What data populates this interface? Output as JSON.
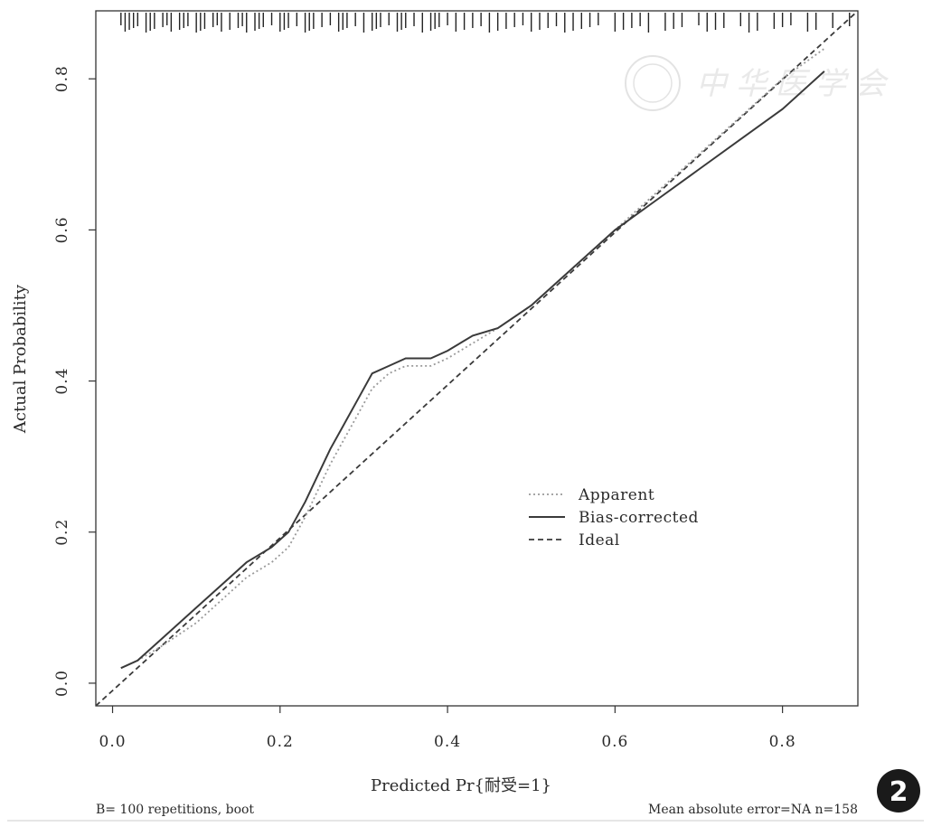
{
  "chart_data": {
    "type": "line",
    "xlabel": "Predicted Pr{耐受=1}",
    "ylabel": "Actual Probability",
    "xlim": [
      -0.02,
      0.89
    ],
    "ylim": [
      -0.03,
      0.89
    ],
    "x_ticks": [
      "0.0",
      "0.2",
      "0.4",
      "0.6",
      "0.8"
    ],
    "y_ticks": [
      "0.0",
      "0.2",
      "0.4",
      "0.6",
      "0.8"
    ],
    "grid": false,
    "legend_position": "center-right",
    "series": [
      {
        "name": "Apparent",
        "style": "dotted",
        "color": "#9a9a9a",
        "x": [
          0.01,
          0.03,
          0.06,
          0.1,
          0.13,
          0.16,
          0.19,
          0.21,
          0.23,
          0.26,
          0.29,
          0.31,
          0.33,
          0.35,
          0.38,
          0.4,
          0.43,
          0.46,
          0.5,
          0.55,
          0.6,
          0.65,
          0.7,
          0.75,
          0.8,
          0.85
        ],
        "y": [
          0.02,
          0.03,
          0.05,
          0.08,
          0.11,
          0.14,
          0.16,
          0.18,
          0.22,
          0.29,
          0.35,
          0.39,
          0.41,
          0.42,
          0.42,
          0.43,
          0.45,
          0.47,
          0.5,
          0.55,
          0.6,
          0.65,
          0.7,
          0.75,
          0.8,
          0.84
        ]
      },
      {
        "name": "Bias-corrected",
        "style": "solid",
        "color": "#3a3a3a",
        "x": [
          0.01,
          0.03,
          0.06,
          0.1,
          0.13,
          0.16,
          0.19,
          0.21,
          0.23,
          0.26,
          0.29,
          0.31,
          0.33,
          0.35,
          0.38,
          0.4,
          0.43,
          0.46,
          0.5,
          0.55,
          0.6,
          0.65,
          0.7,
          0.75,
          0.8,
          0.85
        ],
        "y": [
          0.02,
          0.03,
          0.06,
          0.1,
          0.13,
          0.16,
          0.18,
          0.2,
          0.24,
          0.31,
          0.37,
          0.41,
          0.42,
          0.43,
          0.43,
          0.44,
          0.46,
          0.47,
          0.5,
          0.55,
          0.6,
          0.64,
          0.68,
          0.72,
          0.76,
          0.81
        ]
      },
      {
        "name": "Ideal",
        "style": "dashed",
        "color": "#3a3a3a",
        "x": [
          -0.02,
          0.89
        ],
        "y": [
          -0.03,
          0.89
        ]
      }
    ],
    "rug_x": [
      0.01,
      0.015,
      0.02,
      0.025,
      0.03,
      0.04,
      0.045,
      0.05,
      0.06,
      0.065,
      0.07,
      0.08,
      0.085,
      0.09,
      0.1,
      0.105,
      0.11,
      0.12,
      0.125,
      0.13,
      0.14,
      0.15,
      0.155,
      0.16,
      0.17,
      0.175,
      0.18,
      0.19,
      0.2,
      0.205,
      0.21,
      0.22,
      0.23,
      0.235,
      0.24,
      0.25,
      0.26,
      0.27,
      0.275,
      0.28,
      0.29,
      0.3,
      0.31,
      0.315,
      0.32,
      0.33,
      0.34,
      0.345,
      0.35,
      0.36,
      0.37,
      0.38,
      0.385,
      0.39,
      0.4,
      0.41,
      0.42,
      0.43,
      0.44,
      0.45,
      0.46,
      0.47,
      0.48,
      0.49,
      0.5,
      0.51,
      0.52,
      0.53,
      0.54,
      0.55,
      0.56,
      0.57,
      0.58,
      0.6,
      0.61,
      0.62,
      0.63,
      0.64,
      0.66,
      0.67,
      0.68,
      0.7,
      0.71,
      0.72,
      0.73,
      0.75,
      0.76,
      0.77,
      0.79,
      0.8,
      0.81,
      0.83,
      0.84,
      0.86,
      0.88
    ],
    "footnote_left": "B= 100 repetitions, boot",
    "footnote_right": "Mean absolute error=NA n=158",
    "watermark_text": "中华医学会",
    "figure_number": "2"
  }
}
